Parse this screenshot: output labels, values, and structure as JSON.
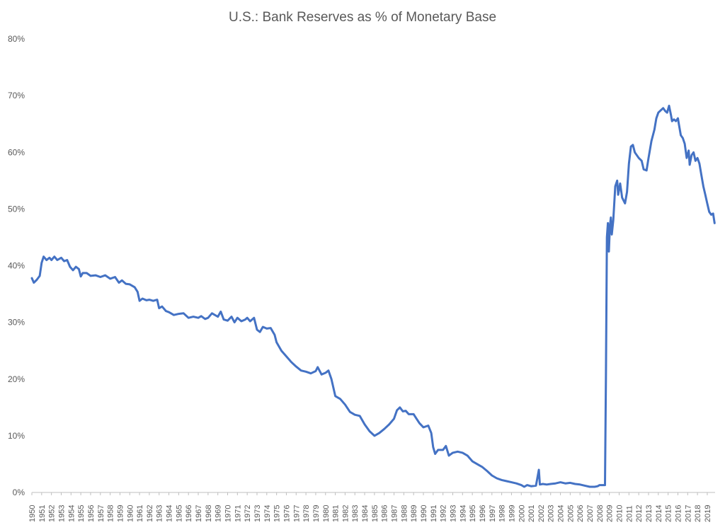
{
  "colors": {
    "series": "#4472c4",
    "axis": "#bfbfbf",
    "text": "#595959"
  },
  "chart_data": {
    "type": "line",
    "title": "U.S.: Bank Reserves as % of Monetary Base",
    "xlabel": "",
    "ylabel": "",
    "ylim": [
      0,
      80
    ],
    "xlim": [
      1950,
      2019.8
    ],
    "yticks": [
      {
        "value": 0,
        "label": "0%"
      },
      {
        "value": 10,
        "label": "10%"
      },
      {
        "value": 20,
        "label": "20%"
      },
      {
        "value": 30,
        "label": "30%"
      },
      {
        "value": 40,
        "label": "40%"
      },
      {
        "value": 50,
        "label": "50%"
      },
      {
        "value": 60,
        "label": "60%"
      },
      {
        "value": 70,
        "label": "70%"
      },
      {
        "value": 80,
        "label": "80%"
      }
    ],
    "xticks": [
      "1950",
      "1951",
      "1952",
      "1953",
      "1954",
      "1955",
      "1956",
      "1957",
      "1958",
      "1959",
      "1960",
      "1961",
      "1962",
      "1963",
      "1964",
      "1965",
      "1966",
      "1967",
      "1968",
      "1969",
      "1970",
      "1971",
      "1972",
      "1973",
      "1974",
      "1975",
      "1976",
      "1977",
      "1978",
      "1979",
      "1980",
      "1981",
      "1982",
      "1983",
      "1984",
      "1985",
      "1986",
      "1987",
      "1988",
      "1989",
      "1990",
      "1991",
      "1992",
      "1993",
      "1994",
      "1995",
      "1996",
      "1997",
      "1998",
      "1999",
      "2000",
      "2001",
      "2002",
      "2003",
      "2004",
      "2005",
      "2006",
      "2007",
      "2008",
      "2009",
      "2010",
      "2011",
      "2012",
      "2013",
      "2014",
      "2015",
      "2016",
      "2017",
      "2018",
      "2019"
    ],
    "grid": false,
    "legend": "none",
    "series": [
      {
        "points": [
          [
            1950.0,
            37.8
          ],
          [
            1950.2,
            37.0
          ],
          [
            1950.5,
            37.5
          ],
          [
            1950.8,
            38.2
          ],
          [
            1951.0,
            40.5
          ],
          [
            1951.2,
            41.6
          ],
          [
            1951.5,
            41.0
          ],
          [
            1951.8,
            41.4
          ],
          [
            1952.0,
            41.0
          ],
          [
            1952.3,
            41.6
          ],
          [
            1952.6,
            41.0
          ],
          [
            1953.0,
            41.4
          ],
          [
            1953.3,
            40.8
          ],
          [
            1953.6,
            41.0
          ],
          [
            1953.9,
            39.8
          ],
          [
            1954.2,
            39.2
          ],
          [
            1954.5,
            39.8
          ],
          [
            1954.8,
            39.4
          ],
          [
            1955.0,
            38.1
          ],
          [
            1955.2,
            38.7
          ],
          [
            1955.6,
            38.7
          ],
          [
            1956.0,
            38.2
          ],
          [
            1956.5,
            38.3
          ],
          [
            1957.0,
            38.0
          ],
          [
            1957.5,
            38.3
          ],
          [
            1958.0,
            37.7
          ],
          [
            1958.5,
            38.0
          ],
          [
            1958.9,
            37.0
          ],
          [
            1959.2,
            37.4
          ],
          [
            1959.6,
            36.8
          ],
          [
            1960.0,
            36.7
          ],
          [
            1960.5,
            36.2
          ],
          [
            1960.8,
            35.4
          ],
          [
            1961.0,
            33.8
          ],
          [
            1961.3,
            34.2
          ],
          [
            1961.7,
            33.9
          ],
          [
            1962.0,
            34.0
          ],
          [
            1962.4,
            33.8
          ],
          [
            1962.8,
            34.0
          ],
          [
            1963.0,
            32.5
          ],
          [
            1963.3,
            32.8
          ],
          [
            1963.7,
            32.0
          ],
          [
            1964.0,
            31.8
          ],
          [
            1964.5,
            31.3
          ],
          [
            1965.0,
            31.5
          ],
          [
            1965.5,
            31.6
          ],
          [
            1966.0,
            30.8
          ],
          [
            1966.5,
            31.0
          ],
          [
            1967.0,
            30.8
          ],
          [
            1967.3,
            31.1
          ],
          [
            1967.7,
            30.6
          ],
          [
            1968.0,
            30.8
          ],
          [
            1968.4,
            31.6
          ],
          [
            1968.8,
            31.2
          ],
          [
            1969.0,
            31.0
          ],
          [
            1969.3,
            31.9
          ],
          [
            1969.6,
            30.5
          ],
          [
            1970.0,
            30.3
          ],
          [
            1970.4,
            31.0
          ],
          [
            1970.7,
            30.0
          ],
          [
            1971.0,
            30.8
          ],
          [
            1971.4,
            30.2
          ],
          [
            1971.8,
            30.5
          ],
          [
            1972.0,
            30.8
          ],
          [
            1972.3,
            30.2
          ],
          [
            1972.7,
            30.8
          ],
          [
            1973.0,
            28.7
          ],
          [
            1973.3,
            28.3
          ],
          [
            1973.6,
            29.2
          ],
          [
            1974.0,
            28.9
          ],
          [
            1974.4,
            29.0
          ],
          [
            1974.8,
            27.8
          ],
          [
            1975.0,
            26.5
          ],
          [
            1975.5,
            25.0
          ],
          [
            1976.0,
            24.0
          ],
          [
            1976.5,
            23.0
          ],
          [
            1977.0,
            22.2
          ],
          [
            1977.5,
            21.5
          ],
          [
            1978.0,
            21.3
          ],
          [
            1978.5,
            21.0
          ],
          [
            1979.0,
            21.4
          ],
          [
            1979.2,
            22.1
          ],
          [
            1979.6,
            20.8
          ],
          [
            1980.0,
            21.1
          ],
          [
            1980.3,
            21.5
          ],
          [
            1980.6,
            20.0
          ],
          [
            1981.0,
            17.0
          ],
          [
            1981.5,
            16.5
          ],
          [
            1982.0,
            15.5
          ],
          [
            1982.5,
            14.2
          ],
          [
            1983.0,
            13.7
          ],
          [
            1983.5,
            13.5
          ],
          [
            1984.0,
            12.0
          ],
          [
            1984.5,
            10.8
          ],
          [
            1985.0,
            10.0
          ],
          [
            1985.5,
            10.5
          ],
          [
            1986.0,
            11.2
          ],
          [
            1986.5,
            12.0
          ],
          [
            1987.0,
            13.0
          ],
          [
            1987.3,
            14.5
          ],
          [
            1987.6,
            15.0
          ],
          [
            1987.9,
            14.3
          ],
          [
            1988.2,
            14.4
          ],
          [
            1988.5,
            13.8
          ],
          [
            1989.0,
            13.8
          ],
          [
            1989.3,
            13.0
          ],
          [
            1989.6,
            12.2
          ],
          [
            1990.0,
            11.5
          ],
          [
            1990.5,
            11.8
          ],
          [
            1990.8,
            10.5
          ],
          [
            1991.0,
            8.0
          ],
          [
            1991.2,
            6.8
          ],
          [
            1991.5,
            7.5
          ],
          [
            1992.0,
            7.5
          ],
          [
            1992.3,
            8.2
          ],
          [
            1992.6,
            6.5
          ],
          [
            1993.0,
            7.0
          ],
          [
            1993.5,
            7.2
          ],
          [
            1994.0,
            7.0
          ],
          [
            1994.5,
            6.5
          ],
          [
            1995.0,
            5.5
          ],
          [
            1995.5,
            5.0
          ],
          [
            1996.0,
            4.5
          ],
          [
            1996.5,
            3.8
          ],
          [
            1997.0,
            3.0
          ],
          [
            1997.5,
            2.5
          ],
          [
            1998.0,
            2.2
          ],
          [
            1998.5,
            2.0
          ],
          [
            1999.0,
            1.8
          ],
          [
            1999.5,
            1.6
          ],
          [
            2000.0,
            1.3
          ],
          [
            2000.3,
            1.0
          ],
          [
            2000.6,
            1.3
          ],
          [
            2001.0,
            1.1
          ],
          [
            2001.5,
            1.2
          ],
          [
            2001.8,
            4.0
          ],
          [
            2001.9,
            1.4
          ],
          [
            2002.2,
            1.5
          ],
          [
            2002.6,
            1.4
          ],
          [
            2003.0,
            1.5
          ],
          [
            2003.5,
            1.6
          ],
          [
            2004.0,
            1.8
          ],
          [
            2004.5,
            1.6
          ],
          [
            2005.0,
            1.7
          ],
          [
            2005.5,
            1.5
          ],
          [
            2006.0,
            1.4
          ],
          [
            2006.5,
            1.2
          ],
          [
            2007.0,
            1.0
          ],
          [
            2007.5,
            1.0
          ],
          [
            2007.8,
            1.1
          ],
          [
            2008.0,
            1.3
          ],
          [
            2008.3,
            1.3
          ],
          [
            2008.55,
            1.3
          ],
          [
            2008.65,
            20.0
          ],
          [
            2008.75,
            45.0
          ],
          [
            2008.85,
            47.5
          ],
          [
            2008.95,
            42.5
          ],
          [
            2009.05,
            47.0
          ],
          [
            2009.15,
            48.5
          ],
          [
            2009.25,
            45.5
          ],
          [
            2009.4,
            48.0
          ],
          [
            2009.6,
            54.0
          ],
          [
            2009.8,
            55.0
          ],
          [
            2009.9,
            52.5
          ],
          [
            2010.1,
            54.5
          ],
          [
            2010.3,
            52.0
          ],
          [
            2010.6,
            51.0
          ],
          [
            2010.8,
            53.0
          ],
          [
            2011.0,
            58.0
          ],
          [
            2011.2,
            61.0
          ],
          [
            2011.4,
            61.3
          ],
          [
            2011.6,
            60.0
          ],
          [
            2011.8,
            59.5
          ],
          [
            2012.0,
            59.0
          ],
          [
            2012.3,
            58.5
          ],
          [
            2012.5,
            57.0
          ],
          [
            2012.8,
            56.8
          ],
          [
            2013.0,
            59.0
          ],
          [
            2013.3,
            62.0
          ],
          [
            2013.6,
            64.0
          ],
          [
            2013.8,
            66.0
          ],
          [
            2014.0,
            67.0
          ],
          [
            2014.3,
            67.5
          ],
          [
            2014.5,
            67.8
          ],
          [
            2014.7,
            67.3
          ],
          [
            2014.9,
            67.0
          ],
          [
            2015.1,
            68.2
          ],
          [
            2015.3,
            66.5
          ],
          [
            2015.4,
            65.5
          ],
          [
            2015.6,
            65.8
          ],
          [
            2015.8,
            65.5
          ],
          [
            2016.0,
            66.0
          ],
          [
            2016.1,
            65.0
          ],
          [
            2016.3,
            63.0
          ],
          [
            2016.5,
            62.5
          ],
          [
            2016.7,
            61.5
          ],
          [
            2016.9,
            59.0
          ],
          [
            2017.1,
            60.3
          ],
          [
            2017.2,
            57.8
          ],
          [
            2017.4,
            59.5
          ],
          [
            2017.6,
            60.0
          ],
          [
            2017.8,
            58.5
          ],
          [
            2018.0,
            59.0
          ],
          [
            2018.2,
            58.0
          ],
          [
            2018.4,
            56.0
          ],
          [
            2018.6,
            54.0
          ],
          [
            2018.8,
            52.5
          ],
          [
            2019.0,
            51.0
          ],
          [
            2019.2,
            49.5
          ],
          [
            2019.4,
            49.0
          ],
          [
            2019.6,
            49.2
          ],
          [
            2019.75,
            47.5
          ]
        ]
      }
    ]
  }
}
